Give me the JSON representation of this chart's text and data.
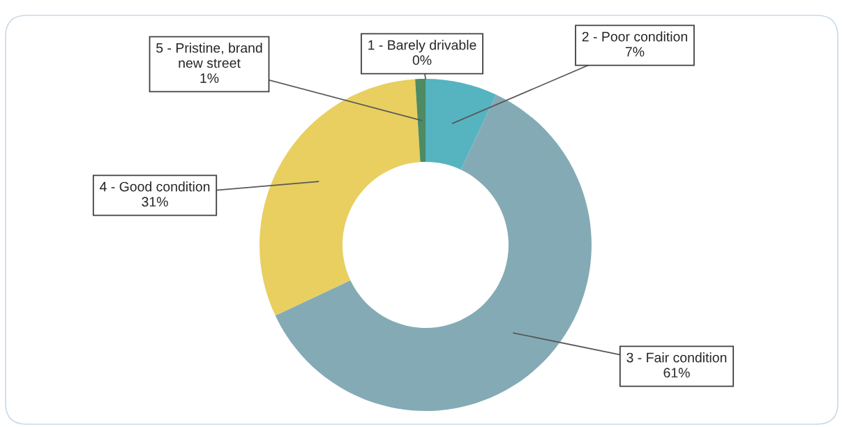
{
  "chart_data": {
    "type": "donut",
    "categories": [
      "1 - Barely drivable",
      "2 - Poor condition",
      "3 - Fair condition",
      "4 - Good condition",
      "5 - Pristine, brand new street"
    ],
    "values": [
      0,
      7,
      61,
      31,
      1
    ],
    "value_labels": [
      "0%",
      "7%",
      "61%",
      "31%",
      "1%"
    ],
    "colors": [
      "#2f6f8f",
      "#56b4c0",
      "#84abb5",
      "#e8cf60",
      "#4e8a62"
    ],
    "legend": false
  }
}
